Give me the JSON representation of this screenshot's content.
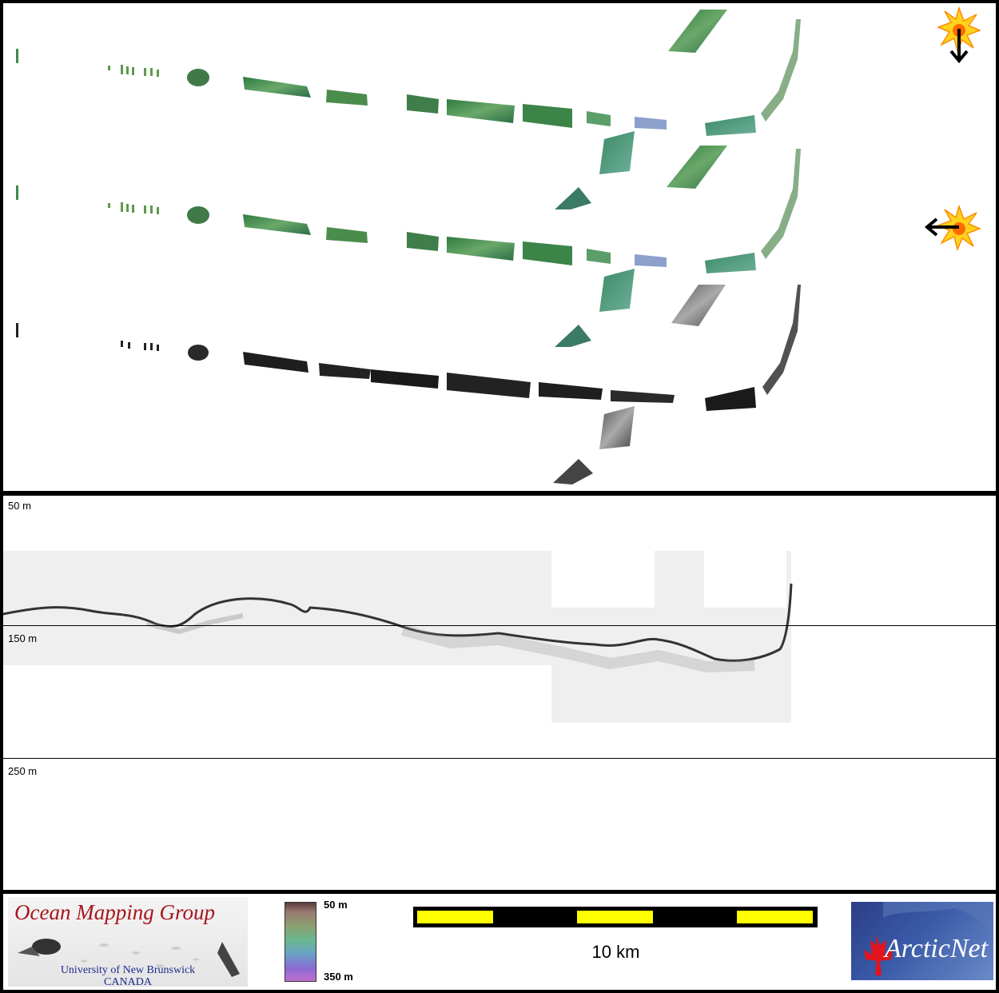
{
  "profile": {
    "depth_labels": {
      "top": "50 m",
      "mid": "150 m",
      "bottom": "250 m"
    }
  },
  "legend": {
    "colorbar_top": "50 m",
    "colorbar_bottom": "350 m",
    "scale_label": "10 km"
  },
  "logos": {
    "omg_title": "Ocean Mapping Group",
    "omg_line1": "University of New Brunswick",
    "omg_line2": "CANADA",
    "arcticnet": "ArcticNet"
  },
  "icons": {
    "sun_view_1": "sun-illumination-icon",
    "sun_view_2": "sun-illumination-icon",
    "arrow_down": "arrow-down-icon",
    "arrow_left": "arrow-left-icon"
  },
  "colors": {
    "backscatter_green": "#3c8a4a",
    "track_gray": "#222222",
    "scale_yellow": "#ffff00",
    "frame": "#000000"
  }
}
